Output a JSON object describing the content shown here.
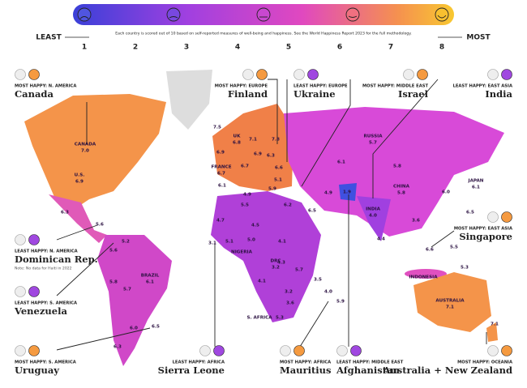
{
  "scale": {
    "least": "LEAST",
    "most": "MOST",
    "ticks": [
      1,
      2,
      3,
      4,
      5,
      6,
      7,
      8
    ],
    "note": "Each country is scored out of 10 based on self-reported measures of well-being and happiness. See the World Happiness Report 2023 for the full methodology."
  },
  "callouts": [
    {
      "tag": "MOST HAPPY: N. AMERICA",
      "country": "Canada"
    },
    {
      "tag": "MOST HAPPY: EUROPE",
      "country": "Finland"
    },
    {
      "tag": "LEAST HAPPY: EUROPE",
      "country": "Ukraine"
    },
    {
      "tag": "MOST HAPPY: MIDDLE EAST",
      "country": "Israel"
    },
    {
      "tag": "LEAST HAPPY: EAST ASIA",
      "country": "India"
    },
    {
      "tag": "LEAST HAPPY: N. AMERICA",
      "country": "Dominican Rep.",
      "note": "Note: No data for Haiti in 2022"
    },
    {
      "tag": "MOST HAPPY: EAST ASIA",
      "country": "Singapore"
    },
    {
      "tag": "LEAST HAPPY: S. AMERICA",
      "country": "Venezuela"
    },
    {
      "tag": "MOST HAPPY: S. AMERICA",
      "country": "Uruguay"
    },
    {
      "tag": "LEAST HAPPY: AFRICA",
      "country": "Sierra Leone"
    },
    {
      "tag": "MOST HAPPY: AFRICA",
      "country": "Mauritius"
    },
    {
      "tag": "LEAST HAPPY: MIDDLE EAST",
      "country": "Afghanistan"
    },
    {
      "tag": "MOST HAPPY: OCEANIA",
      "country": "Australia + New Zealand"
    }
  ],
  "map_labels": [
    {
      "name": "CANADA",
      "value": "7.0"
    },
    {
      "name": "U.S.",
      "value": "6.9"
    },
    {
      "value": "6.3"
    },
    {
      "value": "5.6"
    },
    {
      "value": "5.2"
    },
    {
      "value": "5.6"
    },
    {
      "value": "5.8"
    },
    {
      "name": "BRAZIL",
      "value": "6.1"
    },
    {
      "value": "5.7"
    },
    {
      "value": "6.0"
    },
    {
      "value": "6.5"
    },
    {
      "value": "6.3"
    },
    {
      "value": "7.5"
    },
    {
      "name": "UK",
      "value": "6.8"
    },
    {
      "value": "6.9"
    },
    {
      "name": "FRANCE",
      "value": "6.7"
    },
    {
      "value": "6.1"
    },
    {
      "value": "6.7"
    },
    {
      "value": "6.9"
    },
    {
      "value": "6.3"
    },
    {
      "value": "6.6"
    },
    {
      "value": "5.1"
    },
    {
      "value": "5.9"
    },
    {
      "value": "7.1"
    },
    {
      "value": "7.8"
    },
    {
      "name": "RUSSIA",
      "value": "5.7"
    },
    {
      "value": "6.1"
    },
    {
      "value": "5.8"
    },
    {
      "name": "CHINA",
      "value": "5.8"
    },
    {
      "name": "JAPAN",
      "value": "6.1"
    },
    {
      "value": "6.0"
    },
    {
      "value": "4.9"
    },
    {
      "value": "4.9"
    },
    {
      "value": "6.2"
    },
    {
      "value": "6.5"
    },
    {
      "value": "1.9"
    },
    {
      "name": "INDIA",
      "value": "4.0"
    },
    {
      "value": "4.4"
    },
    {
      "value": "3.6"
    },
    {
      "value": "6.5"
    },
    {
      "value": "6.6"
    },
    {
      "value": "5.5"
    },
    {
      "value": "5.3"
    },
    {
      "name": "INDONESIA"
    },
    {
      "value": "4.7"
    },
    {
      "value": "5.5"
    },
    {
      "value": "4.5"
    },
    {
      "value": "5.0"
    },
    {
      "value": "3.1"
    },
    {
      "value": "5.1"
    },
    {
      "name": "NIGERIA"
    },
    {
      "value": "4.1"
    },
    {
      "value": "4.3"
    },
    {
      "name": "DRC",
      "value": "3.2"
    },
    {
      "value": "5.7"
    },
    {
      "value": "4.1"
    },
    {
      "value": "3.2"
    },
    {
      "value": "3.6"
    },
    {
      "value": "3.5"
    },
    {
      "value": "4.0"
    },
    {
      "name": "S. AFRICA"
    },
    {
      "value": "5.3"
    },
    {
      "value": "5.9"
    },
    {
      "name": "AUSTRALIA",
      "value": "7.1"
    },
    {
      "value": "7.1"
    }
  ]
}
